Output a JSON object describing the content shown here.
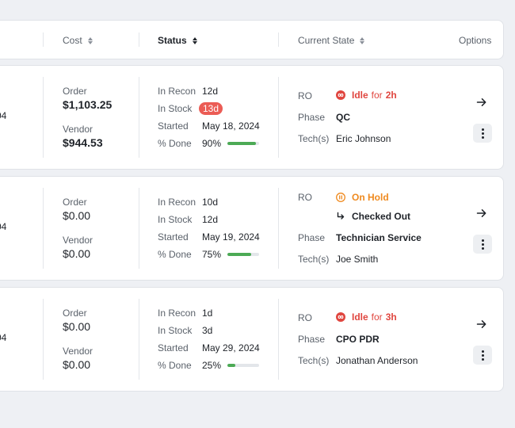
{
  "header": {
    "cost": "Cost",
    "status": "Status",
    "current_state": "Current State",
    "options": "Options"
  },
  "labels": {
    "order": "Order",
    "vendor": "Vendor",
    "in_recon": "In Recon",
    "in_stock": "In Stock",
    "started": "Started",
    "pct_done": "% Done",
    "ro": "RO",
    "phase": "Phase",
    "techs": "Tech(s)",
    "for": "for"
  },
  "icons": {
    "idle": "idle-loop-icon",
    "hold": "pause-circle-icon",
    "checked_out": "return-arrow-icon",
    "go": "arrow-right-icon",
    "more": "vertical-dots-icon",
    "sort": "sort-icon"
  },
  "colors": {
    "idle": "#e0463f",
    "hold": "#ef8a1f",
    "badge": "#eb5c55",
    "progress": "#4caa55"
  },
  "rows": [
    {
      "truncated": "04",
      "order": "$1,103.25",
      "vendor": "$944.53",
      "in_recon": "12d",
      "in_stock": "13d",
      "started": "May 18, 2024",
      "pct_done": "90%",
      "progress": 0.9,
      "ro_status": "Idle",
      "ro_duration": "2h",
      "phase": "QC",
      "techs": "Eric Johnson"
    },
    {
      "truncated": "04",
      "order": "$0.00",
      "vendor": "$0.00",
      "in_recon": "10d",
      "in_stock": "12d",
      "started": "May 19, 2024",
      "pct_done": "75%",
      "progress": 0.75,
      "ro_status": "On Hold",
      "ro_sub": "Checked Out",
      "phase": "Technician Service",
      "techs": "Joe Smith"
    },
    {
      "truncated": "04",
      "order": "$0.00",
      "vendor": "$0.00",
      "in_recon": "1d",
      "in_stock": "3d",
      "started": "May 29, 2024",
      "pct_done": "25%",
      "progress": 0.25,
      "ro_status": "Idle",
      "ro_duration": "3h",
      "phase": "CPO PDR",
      "techs": "Jonathan Anderson"
    }
  ]
}
